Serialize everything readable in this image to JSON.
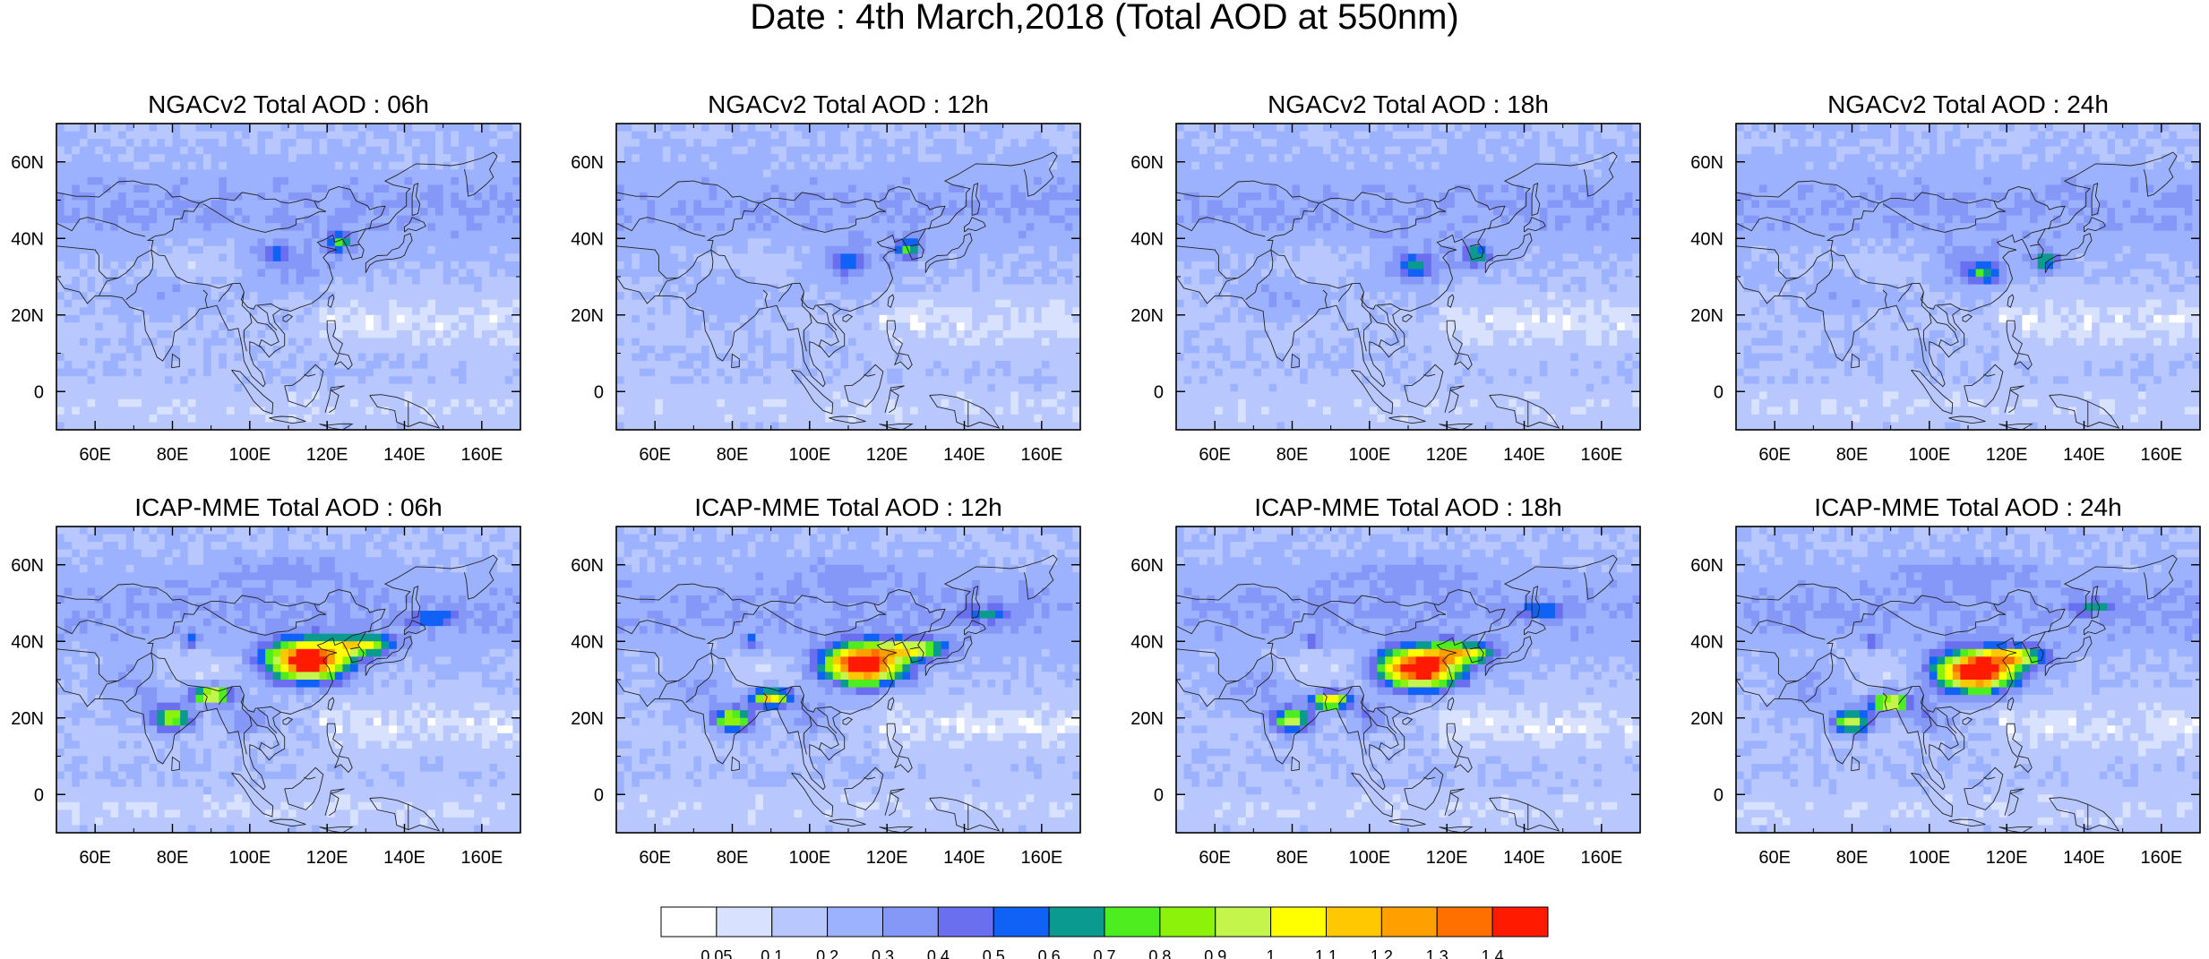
{
  "figure_title": "Date : 4th March,2018 (Total AOD at 550nm)",
  "map": {
    "lon_range": [
      50,
      170
    ],
    "lat_range": [
      -10,
      70
    ],
    "xticks": [
      "60E",
      "80E",
      "100E",
      "120E",
      "140E",
      "160E"
    ],
    "xtick_values": [
      60,
      80,
      100,
      120,
      140,
      160
    ],
    "yticks": [
      "60N",
      "40N",
      "20N",
      "0"
    ],
    "ytick_values": [
      60,
      40,
      20,
      0
    ]
  },
  "panels": [
    {
      "title": "NGACv2 Total AOD : 06h",
      "model": "ngac",
      "hour": 6
    },
    {
      "title": "NGACv2 Total AOD : 12h",
      "model": "ngac",
      "hour": 12
    },
    {
      "title": "NGACv2 Total AOD : 18h",
      "model": "ngac",
      "hour": 18
    },
    {
      "title": "NGACv2 Total AOD : 24h",
      "model": "ngac",
      "hour": 24
    },
    {
      "title": "ICAP-MME Total AOD : 06h",
      "model": "icap",
      "hour": 6
    },
    {
      "title": "ICAP-MME Total AOD : 12h",
      "model": "icap",
      "hour": 12
    },
    {
      "title": "ICAP-MME Total AOD : 18h",
      "model": "icap",
      "hour": 18
    },
    {
      "title": "ICAP-MME Total AOD : 24h",
      "model": "icap",
      "hour": 24
    }
  ],
  "colorbar": {
    "levels": [
      "0.05",
      "0.1",
      "0.2",
      "0.3",
      "0.4",
      "0.5",
      "0.6",
      "0.7",
      "0.8",
      "0.9",
      "1",
      "1.1",
      "1.2",
      "1.3",
      "1.4"
    ],
    "colors": [
      "#ffffff",
      "#d8e2ff",
      "#b8c8ff",
      "#9db2ff",
      "#8597f7",
      "#6a6ff0",
      "#0f62f5",
      "#0a9a90",
      "#4ded20",
      "#8cf20a",
      "#c4f54a",
      "#ffff00",
      "#ffc800",
      "#ffa000",
      "#ff7000",
      "#ff1a00"
    ]
  }
}
